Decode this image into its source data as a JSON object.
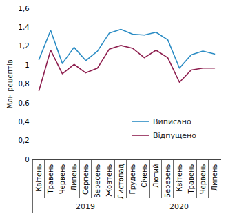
{
  "chart_data": {
    "type": "line",
    "y_label": "Млн рецептів",
    "categories": [
      "Квітень",
      "Травень",
      "Червень",
      "Липень",
      "Серпень",
      "Вересень",
      "Жовтень",
      "Листопад",
      "Грудень",
      "Січень",
      "Лютий",
      "Березень",
      "Квітень",
      "Травень",
      "Червень",
      "Липень"
    ],
    "year_groups": [
      {
        "name": "2019",
        "count": 9
      },
      {
        "name": "2020",
        "count": 7
      }
    ],
    "series": [
      {
        "name": "Виписано",
        "color": "#2b8cc4",
        "values": [
          1.06,
          1.37,
          1.02,
          1.19,
          1.05,
          1.15,
          1.34,
          1.38,
          1.33,
          1.32,
          1.35,
          1.27,
          0.97,
          1.11,
          1.15,
          1.12
        ]
      },
      {
        "name": "Відпущено",
        "color": "#8e1f4f",
        "values": [
          0.73,
          1.16,
          0.91,
          1.01,
          0.92,
          0.97,
          1.17,
          1.21,
          1.18,
          1.08,
          1.16,
          1.08,
          0.82,
          0.95,
          0.97,
          0.97
        ]
      }
    ],
    "ylim": [
      0,
      1.6
    ],
    "yticks": [
      0,
      {
        "value": 0.2,
        "label": "0,2"
      },
      {
        "value": 0.4,
        "label": "0,4"
      },
      {
        "value": 0.6,
        "label": "0,6"
      },
      {
        "value": 0.8,
        "label": "0,8"
      },
      1,
      {
        "value": 1.2,
        "label": "1,2"
      },
      {
        "value": 1.4,
        "label": "1,4"
      },
      {
        "value": 1.6,
        "label": "1,6"
      }
    ],
    "grid": false,
    "legend": "bottom-right"
  }
}
